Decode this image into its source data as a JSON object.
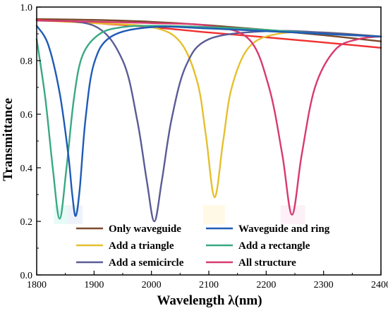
{
  "chart_data": {
    "type": "line",
    "title": "",
    "xlabel": "Wavelength λ(nm)",
    "ylabel": "Transmittance",
    "xlim": [
      1800,
      2400
    ],
    "ylim": [
      0.0,
      1.0
    ],
    "xticks": [
      "1800",
      "1900",
      "2000",
      "2100",
      "2200",
      "2300",
      "2400"
    ],
    "yticks": [
      "0.0",
      "0.2",
      "0.4",
      "0.6",
      "0.8",
      "1.0"
    ],
    "grid": false,
    "legend_position": "bottom-inside, two columns",
    "series": [
      {
        "name": "Only waveguide",
        "color": "#7b4a2e",
        "x": [
          1800,
          1900,
          2000,
          2100,
          2200,
          2300,
          2400
        ],
        "y": [
          0.955,
          0.952,
          0.945,
          0.932,
          0.915,
          0.895,
          0.872
        ]
      },
      {
        "name": "Waveguide and ring",
        "color": "#1f5bb5",
        "x": [
          1800,
          1820,
          1840,
          1855,
          1862,
          1868,
          1875,
          1885,
          1900,
          1930,
          2000,
          2100,
          2200,
          2300,
          2400
        ],
        "y": [
          0.93,
          0.86,
          0.68,
          0.45,
          0.3,
          0.22,
          0.32,
          0.58,
          0.79,
          0.89,
          0.925,
          0.92,
          0.91,
          0.9,
          0.89
        ]
      },
      {
        "name": "Add a triangle",
        "color": "#e5c02e",
        "x": [
          1800,
          1900,
          2000,
          2050,
          2080,
          2095,
          2110,
          2125,
          2140,
          2170,
          2220,
          2300,
          2400
        ],
        "y": [
          0.95,
          0.94,
          0.925,
          0.87,
          0.72,
          0.52,
          0.29,
          0.5,
          0.7,
          0.85,
          0.9,
          0.905,
          0.89
        ]
      },
      {
        "name": "Add a rectangle",
        "color": "#3aa882",
        "x": [
          1800,
          1815,
          1828,
          1840,
          1852,
          1865,
          1880,
          1910,
          1950,
          2000,
          2100,
          2200,
          2300,
          2400
        ],
        "y": [
          0.88,
          0.66,
          0.4,
          0.21,
          0.4,
          0.66,
          0.82,
          0.9,
          0.925,
          0.93,
          0.925,
          0.915,
          0.9,
          0.89
        ]
      },
      {
        "name": "Add a semicircle",
        "color": "#5b5b96",
        "x": [
          1800,
          1900,
          1950,
          1975,
          1992,
          2005,
          2018,
          2035,
          2060,
          2100,
          2200,
          2300,
          2400
        ],
        "y": [
          0.95,
          0.93,
          0.8,
          0.58,
          0.35,
          0.2,
          0.35,
          0.58,
          0.78,
          0.88,
          0.91,
          0.905,
          0.89
        ]
      },
      {
        "name": "All structure",
        "color": "#d83a6f",
        "x": [
          1800,
          1900,
          2000,
          2100,
          2170,
          2205,
          2228,
          2245,
          2262,
          2285,
          2320,
          2360,
          2400
        ],
        "y": [
          0.95,
          0.945,
          0.94,
          0.93,
          0.88,
          0.7,
          0.45,
          0.225,
          0.45,
          0.7,
          0.84,
          0.88,
          0.89
        ]
      },
      {
        "name": "",
        "color": "#f03030",
        "x": [
          1800,
          1900,
          2000,
          2100,
          2200,
          2300,
          2400
        ],
        "y": [
          0.952,
          0.94,
          0.925,
          0.905,
          0.887,
          0.868,
          0.848
        ]
      }
    ]
  }
}
